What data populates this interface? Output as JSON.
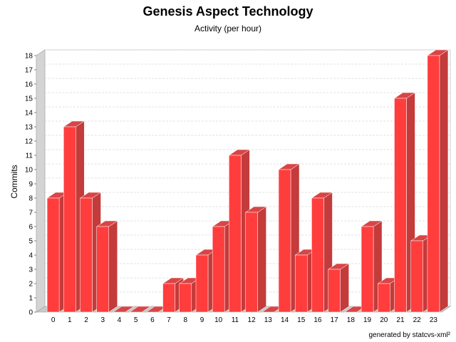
{
  "header": {
    "title": "Genesis Aspect Technology",
    "subtitle": "Activity (per hour)"
  },
  "footer": {
    "credit": "generated by statcvs-xml²"
  },
  "colors": {
    "bar_front": "#ff3d3d",
    "bar_top": "#d94545",
    "bar_side": "#c43b3b",
    "wall": "#d4d4d4",
    "floor": "#c8c8c8",
    "grid": "#d8d8d8"
  },
  "chart_data": {
    "type": "bar",
    "title": "Genesis Aspect Technology",
    "subtitle": "Activity (per hour)",
    "xlabel": "",
    "ylabel": "Commits",
    "categories": [
      "0",
      "1",
      "2",
      "3",
      "4",
      "5",
      "6",
      "7",
      "8",
      "9",
      "10",
      "11",
      "12",
      "13",
      "14",
      "15",
      "16",
      "17",
      "18",
      "19",
      "20",
      "21",
      "22",
      "23"
    ],
    "values": [
      8,
      13,
      8,
      6,
      0,
      0,
      0,
      2,
      2,
      4,
      6,
      11,
      7,
      0,
      10,
      4,
      8,
      3,
      0,
      6,
      2,
      15,
      5,
      18
    ],
    "ylim": [
      0,
      18
    ],
    "yticks": [
      "0",
      "1",
      "2",
      "3",
      "4",
      "5",
      "6",
      "7",
      "8",
      "9",
      "10",
      "11",
      "12",
      "13",
      "14",
      "15",
      "16",
      "17",
      "18"
    ],
    "grid": true,
    "style": "3d"
  }
}
